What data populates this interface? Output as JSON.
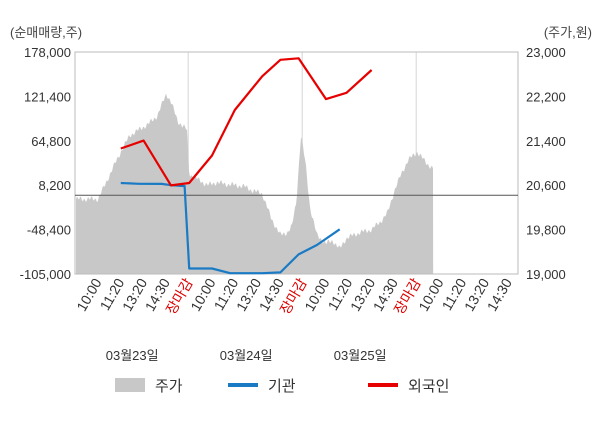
{
  "chart_data": {
    "type": "line",
    "left_axis_unit": "(순매매량,주)",
    "right_axis_unit": "(주가,원)",
    "y_left": {
      "ticks": [
        "178,000",
        "121,400",
        "64,800",
        "8,200",
        "-48,400",
        "-105,000"
      ],
      "range": [
        -105000,
        178000
      ]
    },
    "y_right": {
      "ticks": [
        "23,000",
        "22,200",
        "21,400",
        "20,600",
        "19,800",
        "19,000"
      ],
      "range": [
        19000,
        23000
      ]
    },
    "x_ticks": [
      {
        "label": "10:00",
        "color": "#333333"
      },
      {
        "label": "11:20",
        "color": "#333333"
      },
      {
        "label": "13:20",
        "color": "#333333"
      },
      {
        "label": "14:30",
        "color": "#333333"
      },
      {
        "label": "장마감",
        "color": "#dd0000"
      },
      {
        "label": "10:00",
        "color": "#333333"
      },
      {
        "label": "11:20",
        "color": "#333333"
      },
      {
        "label": "13:20",
        "color": "#333333"
      },
      {
        "label": "14:30",
        "color": "#333333"
      },
      {
        "label": "장마감",
        "color": "#dd0000"
      },
      {
        "label": "10:00",
        "color": "#333333"
      },
      {
        "label": "11:20",
        "color": "#333333"
      },
      {
        "label": "13:20",
        "color": "#333333"
      },
      {
        "label": "14:30",
        "color": "#333333"
      },
      {
        "label": "장마감",
        "color": "#dd0000"
      },
      {
        "label": "10:00",
        "color": "#333333"
      },
      {
        "label": "11:20",
        "color": "#333333"
      },
      {
        "label": "13:20",
        "color": "#333333"
      },
      {
        "label": "14:30",
        "color": "#333333"
      }
    ],
    "dates": [
      "03월23일",
      "03월24일",
      "03월25일"
    ],
    "reference_line_right_value": 20420,
    "series": [
      {
        "name": "주가",
        "kind": "area",
        "axis": "right",
        "color": "#c8c8c8",
        "anchors": [
          [
            0,
            20350
          ],
          [
            0.3,
            20600
          ],
          [
            0.7,
            20950
          ],
          [
            1.0,
            21200
          ],
          [
            1.4,
            21500
          ],
          [
            1.8,
            21600
          ],
          [
            2.2,
            21700
          ],
          [
            2.6,
            21850
          ],
          [
            3.0,
            22250
          ],
          [
            3.2,
            22100
          ],
          [
            3.5,
            21750
          ],
          [
            3.9,
            21600
          ],
          [
            4.0,
            20800
          ],
          [
            4.4,
            20700
          ],
          [
            4.8,
            20600
          ],
          [
            5.2,
            20650
          ],
          [
            5.6,
            20620
          ],
          [
            6.0,
            20600
          ],
          [
            6.4,
            20580
          ],
          [
            6.8,
            20500
          ],
          [
            7.2,
            20450
          ],
          [
            7.6,
            20000
          ],
          [
            8.0,
            19700
          ],
          [
            8.3,
            19750
          ],
          [
            8.5,
            19850
          ],
          [
            8.7,
            20300
          ],
          [
            8.9,
            21500
          ],
          [
            9.1,
            21000
          ],
          [
            9.3,
            20200
          ],
          [
            9.6,
            19700
          ],
          [
            10.0,
            19550
          ],
          [
            10.3,
            19600
          ],
          [
            10.6,
            19450
          ],
          [
            10.9,
            19650
          ],
          [
            11.2,
            19700
          ],
          [
            11.5,
            19750
          ],
          [
            12.0,
            19800
          ],
          [
            12.4,
            19950
          ],
          [
            12.7,
            20100
          ],
          [
            13.0,
            20500
          ],
          [
            13.3,
            20800
          ],
          [
            13.6,
            21050
          ],
          [
            14.0,
            21200
          ],
          [
            14.4,
            21000
          ],
          [
            14.7,
            20900
          ]
        ]
      },
      {
        "name": "기관",
        "kind": "line",
        "axis": "left",
        "color": "#1a7bc4",
        "points": [
          [
            1.0,
            11000
          ],
          [
            1.8,
            10000
          ],
          [
            2.8,
            9800
          ],
          [
            3.2,
            8200
          ],
          [
            3.8,
            7000
          ],
          [
            4.0,
            -98000
          ],
          [
            5.0,
            -98000
          ],
          [
            5.8,
            -104000
          ],
          [
            7.2,
            -104000
          ],
          [
            8.0,
            -103000
          ],
          [
            8.8,
            -80000
          ],
          [
            9.6,
            -68000
          ],
          [
            10.6,
            -48000
          ]
        ]
      },
      {
        "name": "외국인",
        "kind": "line",
        "axis": "left",
        "color": "#e60000",
        "points": [
          [
            1.0,
            55000
          ],
          [
            2.0,
            65000
          ],
          [
            3.2,
            8000
          ],
          [
            4.0,
            11000
          ],
          [
            5.0,
            46000
          ],
          [
            6.0,
            104000
          ],
          [
            7.2,
            147000
          ],
          [
            8.0,
            168000
          ],
          [
            8.8,
            170000
          ],
          [
            10.0,
            118000
          ],
          [
            10.9,
            126000
          ],
          [
            12.0,
            155000
          ]
        ]
      }
    ]
  }
}
